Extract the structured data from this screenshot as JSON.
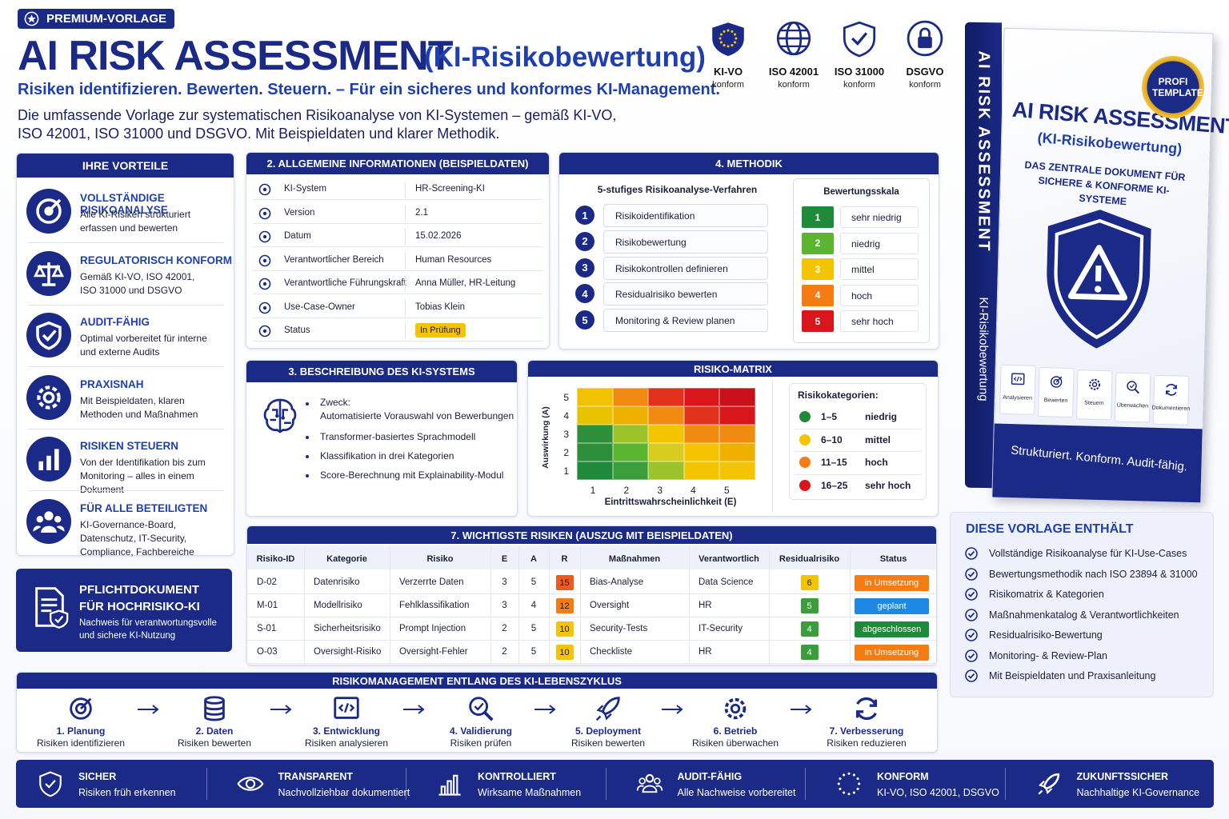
{
  "badge": "PREMIUM-VORLAGE",
  "header": {
    "title": "AI RISK ASSESSMENT",
    "title_sub": "(KI-Risikobewertung)",
    "tagline": "Risiken identifizieren. Bewerten. Steuern. – Für ein sicheres und konformes KI-Management.",
    "intro": "Die umfassende Vorlage zur systematischen Risikoanalyse von KI-Systemen – gemäß KI-VO, ISO 42001, ISO 31000 und DSGVO. Mit Beispieldaten und klarer Methodik."
  },
  "compliance": [
    {
      "label": "KI-VO",
      "sub": "konform"
    },
    {
      "label": "ISO 42001",
      "sub": "konform"
    },
    {
      "label": "ISO 31000",
      "sub": "konform"
    },
    {
      "label": "DSGVO",
      "sub": "konform"
    }
  ],
  "advantages": {
    "title": "IHRE VORTEILE",
    "items": [
      {
        "title": "VOLLSTÄNDIGE RISIKOANALYSE",
        "text": "Alle KI-Risiken strukturiert erfassen und bewerten"
      },
      {
        "title": "REGULATORISCH KONFORM",
        "text": "Gemäß KI-VO, ISO 42001, ISO 31000 und DSGVO"
      },
      {
        "title": "AUDIT-FÄHIG",
        "text": "Optimal vorbereitet für interne und externe Audits"
      },
      {
        "title": "PRAXISNAH",
        "text": "Mit Beispieldaten, klaren Methoden und Maßnahmen"
      },
      {
        "title": "RISIKEN STEUERN",
        "text": "Von der Identifikation bis zum Monitoring – alles in einem Dokument"
      },
      {
        "title": "FÜR ALLE BETEILIGTEN",
        "text": "KI-Governance-Board, Datenschutz, IT-Security, Compliance, Fachbereiche"
      }
    ]
  },
  "mandatory": {
    "title": "PFLICHTDOKUMENT FÜR HOCHRISIKO-KI",
    "text": "Nachweis für verantwortungsvolle und sichere KI-Nutzung"
  },
  "general_info": {
    "title": "2. ALLGEMEINE INFORMATIONEN (BEISPIELDATEN)",
    "rows": [
      {
        "label": "KI-System",
        "value": "HR-Screening-KI"
      },
      {
        "label": "Version",
        "value": "2.1"
      },
      {
        "label": "Datum",
        "value": "15.02.2026"
      },
      {
        "label": "Verantwortlicher Bereich",
        "value": "Human Resources"
      },
      {
        "label": "Verantwortliche Führungskraft",
        "value": "Anna Müller, HR-Leitung"
      },
      {
        "label": "Use-Case-Owner",
        "value": "Tobias Klein"
      },
      {
        "label": "Status",
        "value": "In Prüfung",
        "color": "#f5c400"
      }
    ]
  },
  "methodology": {
    "title": "4. METHODIK",
    "steps_title": "5-stufiges Risikoanalyse-Verfahren",
    "steps": [
      {
        "number": 1,
        "label": "Risikoidentifikation"
      },
      {
        "number": 2,
        "label": "Risikobewertung"
      },
      {
        "number": 3,
        "label": "Risikokontrollen definieren"
      },
      {
        "number": 4,
        "label": "Residualrisiko bewerten"
      },
      {
        "number": 5,
        "label": "Monitoring & Review planen"
      }
    ],
    "scale_title": "Bewertungsskala",
    "scale": [
      {
        "value": 1,
        "label": "sehr niedrig",
        "color": "#1e8a3a"
      },
      {
        "value": 2,
        "label": "niedrig",
        "color": "#5cb531"
      },
      {
        "value": 3,
        "label": "mittel",
        "color": "#f5c400"
      },
      {
        "value": 4,
        "label": "hoch",
        "color": "#f47c12"
      },
      {
        "value": 5,
        "label": "sehr hoch",
        "color": "#d9161c"
      }
    ]
  },
  "description": {
    "title": "3. BESCHREIBUNG DES KI-SYSTEMS",
    "purpose_label": "Zweck:",
    "purpose": "Automatisierte Vorauswahl von Bewerbungen",
    "items": [
      "Transformer-basiertes Sprachmodell",
      "Klassifikation in drei Kategorien",
      "Score-Berechnung mit Explainability-Modul"
    ]
  },
  "matrix": {
    "title": "RISIKO-MATRIX",
    "y_label": "Auswirkung (A)",
    "x_label": "Eintrittswahrscheinlichkeit (E)",
    "y_ticks": [
      5,
      4,
      3,
      2,
      1
    ],
    "x_ticks": [
      1,
      2,
      3,
      4,
      5
    ],
    "cell_colors": [
      [
        "#f2c200",
        "#f08a10",
        "#e0321a",
        "#d9161c",
        "#c8101a"
      ],
      [
        "#e8c400",
        "#f0b000",
        "#f08a10",
        "#e0321a",
        "#d9161c"
      ],
      [
        "#2e8f3a",
        "#9cc32a",
        "#f5c400",
        "#f08a10",
        "#f08a10"
      ],
      [
        "#2e8f3a",
        "#5cb531",
        "#d8cc20",
        "#f5c400",
        "#f0b000"
      ],
      [
        "#1e8a3a",
        "#3a9e3a",
        "#9cc32a",
        "#f5c400",
        "#f5c400"
      ]
    ],
    "categories_title": "Risikokategorien:",
    "categories": [
      {
        "range": "1–5",
        "label": "niedrig",
        "color": "#1e8a3a"
      },
      {
        "range": "6–10",
        "label": "mittel",
        "color": "#f5c400"
      },
      {
        "range": "11–15",
        "label": "hoch",
        "color": "#f47c12"
      },
      {
        "range": "16–25",
        "label": "sehr hoch",
        "color": "#d9161c"
      }
    ]
  },
  "risks": {
    "title": "7. WICHTIGSTE RISIKEN (AUSZUG MIT BEISPIELDATEN)",
    "columns": [
      "Risiko-ID",
      "Kategorie",
      "Risiko",
      "E",
      "A",
      "R",
      "Maßnahmen",
      "Verantwortlich",
      "Residualrisiko",
      "Status"
    ],
    "rows": [
      {
        "id": "D-02",
        "category": "Datenrisiko",
        "risk": "Verzerrte Daten",
        "e": 3,
        "a": 5,
        "r": 15,
        "r_color": "#f05a1a",
        "measure": "Bias-Analyse",
        "owner": "Data Science",
        "residual": 6,
        "residual_color": "#f5c400",
        "status": "in Umsetzung",
        "status_color": "#f47c12"
      },
      {
        "id": "M-01",
        "category": "Modellrisiko",
        "risk": "Fehlklassifikation",
        "e": 3,
        "a": 4,
        "r": 12,
        "r_color": "#f47c12",
        "measure": "Oversight",
        "owner": "HR",
        "residual": 5,
        "residual_color": "#3a9e3a",
        "status": "geplant",
        "status_color": "#1e88e5"
      },
      {
        "id": "S-01",
        "category": "Sicherheitsrisiko",
        "risk": "Prompt Injection",
        "e": 2,
        "a": 5,
        "r": 10,
        "r_color": "#f5c400",
        "measure": "Security-Tests",
        "owner": "IT-Security",
        "residual": 4,
        "residual_color": "#3a9e3a",
        "status": "abgeschlossen",
        "status_color": "#1e8a3a"
      },
      {
        "id": "O-03",
        "category": "Oversight-Risiko",
        "risk": "Oversight-Fehler",
        "e": 2,
        "a": 5,
        "r": 10,
        "r_color": "#f5c400",
        "measure": "Checkliste",
        "owner": "HR",
        "residual": 4,
        "residual_color": "#3a9e3a",
        "status": "in Umsetzung",
        "status_color": "#f47c12"
      }
    ]
  },
  "lifecycle": {
    "title": "RISIKOMANAGEMENT ENTLANG DES KI-LEBENSZYKLUS",
    "steps": [
      {
        "title": "1. Planung",
        "text": "Risiken identifizieren"
      },
      {
        "title": "2. Daten",
        "text": "Risiken bewerten"
      },
      {
        "title": "3. Entwicklung",
        "text": "Risiken analysieren"
      },
      {
        "title": "4. Validierung",
        "text": "Risiken prüfen"
      },
      {
        "title": "5. Deployment",
        "text": "Risiken bewerten"
      },
      {
        "title": "6. Betrieb",
        "text": "Risiken überwachen"
      },
      {
        "title": "7. Verbesserung",
        "text": "Risiken reduzieren"
      }
    ]
  },
  "footer": [
    {
      "title": "SICHER",
      "text": "Risiken früh erkennen"
    },
    {
      "title": "TRANSPARENT",
      "text": "Nachvollziehbar dokumentiert"
    },
    {
      "title": "KONTROLLIERT",
      "text": "Wirksame Maßnahmen"
    },
    {
      "title": "AUDIT-FÄHIG",
      "text": "Alle Nachweise vorbereitet"
    },
    {
      "title": "KONFORM",
      "text": "KI-VO, ISO 42001, DSGVO"
    },
    {
      "title": "ZUKUNFTSSICHER",
      "text": "Nachhaltige KI-Governance"
    }
  ],
  "book": {
    "spine": "AI RISK ASSESSMENT",
    "spine_sub": "KI-Risikobewertung",
    "seal": "PROFI TEMPLATE",
    "title": "AI RISK ASSESSMENT",
    "subtitle": "(KI-Risikobewertung)",
    "tagline": "DAS ZENTRALE DOKUMENT FÜR SICHERE & KONFORME KI-SYSTEME",
    "icons": [
      "Analysieren",
      "Bewerten",
      "Steuern",
      "Überwachen",
      "Dokumentieren"
    ],
    "slogan": "Strukturiert. Konform. Audit-fähig."
  },
  "contents": {
    "title": "DIESE VORLAGE ENTHÄLT",
    "items": [
      "Vollständige Risikoanalyse für KI-Use-Cases",
      "Bewertungsmethodik nach ISO 23894 & 31000",
      "Risikomatrix & Kategorien",
      "Maßnahmenkatalog & Verantwortlichkeiten",
      "Residualrisiko-Bewertung",
      "Monitoring- & Review-Plan",
      "Mit Beispieldaten und Praxisanleitung"
    ]
  }
}
